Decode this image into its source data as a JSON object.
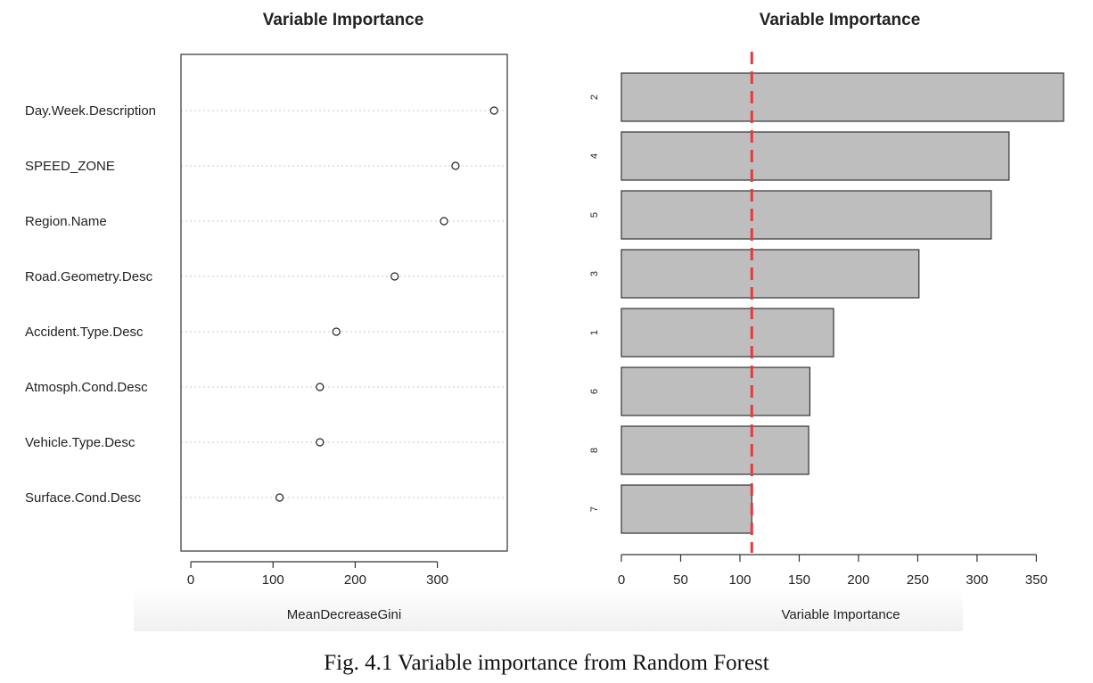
{
  "caption": "Fig. 4.1 Variable importance from Random Forest",
  "colors": {
    "bar_fill": "#bebebe",
    "threshold_line": "#e8383d",
    "grid": "#c8c8c8"
  },
  "chart_data": [
    {
      "type": "scatter",
      "title": "Variable Importance",
      "xlabel": "MeanDecreaseGini",
      "ylabel": "",
      "xlim": [
        -12,
        385
      ],
      "xticks": [
        0,
        100,
        200,
        300
      ],
      "grid": "dotted horizontal lines per category",
      "categories": [
        "Day.Week.Description",
        "SPEED_ZONE",
        "Region.Name",
        "Road.Geometry.Desc",
        "Accident.Type.Desc",
        "Atmosph.Cond.Desc",
        "Vehicle.Type.Desc",
        "Surface.Cond.Desc"
      ],
      "values": [
        369,
        322,
        308,
        248,
        177,
        157,
        157,
        108
      ]
    },
    {
      "type": "bar",
      "orientation": "horizontal",
      "title": "Variable Importance",
      "xlabel": "Variable Importance",
      "ylabel": "",
      "xlim": [
        0,
        373
      ],
      "xticks": [
        0,
        50,
        100,
        150,
        200,
        250,
        300,
        350
      ],
      "categories": [
        "2",
        "4",
        "5",
        "3",
        "1",
        "6",
        "8",
        "7"
      ],
      "values": [
        373,
        327,
        312,
        251,
        179,
        159,
        158,
        110
      ],
      "reference_line": {
        "x": 110,
        "style": "dashed",
        "color": "#e8383d"
      }
    }
  ]
}
